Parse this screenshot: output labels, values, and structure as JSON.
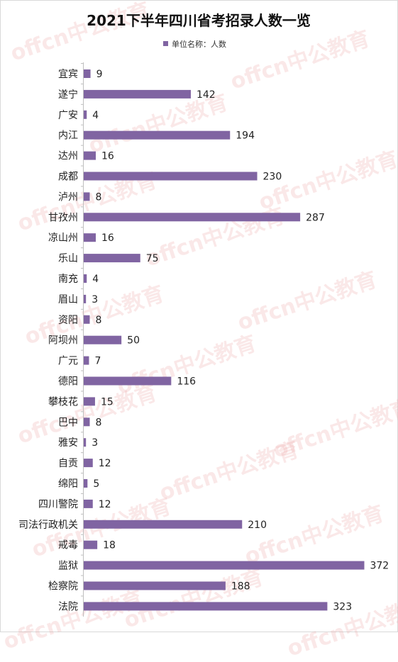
{
  "chart_data": {
    "type": "bar",
    "orientation": "horizontal",
    "title": "2021下半年四川省考招录人数一览",
    "legend": {
      "label": "单位名称：人数",
      "position": "top"
    },
    "bar_color": "#8064a2",
    "grid": false,
    "categories": [
      "宜宾",
      "遂宁",
      "广安",
      "内江",
      "达州",
      "成都",
      "泸州",
      "甘孜州",
      "凉山州",
      "乐山",
      "南充",
      "眉山",
      "资阳",
      "阿坝州",
      "广元",
      "德阳",
      "攀枝花",
      "巴中",
      "雅安",
      "自贡",
      "绵阳",
      "四川警院",
      "司法行政机关",
      "戒毒",
      "监狱",
      "检察院",
      "法院"
    ],
    "values": [
      9,
      142,
      4,
      194,
      16,
      230,
      8,
      287,
      16,
      75,
      4,
      3,
      8,
      50,
      7,
      116,
      15,
      8,
      3,
      12,
      5,
      12,
      210,
      18,
      372,
      188,
      323
    ],
    "xlim": [
      0,
      380
    ]
  },
  "watermark": {
    "text": "offcn中公教育",
    "color": "#e89696"
  }
}
